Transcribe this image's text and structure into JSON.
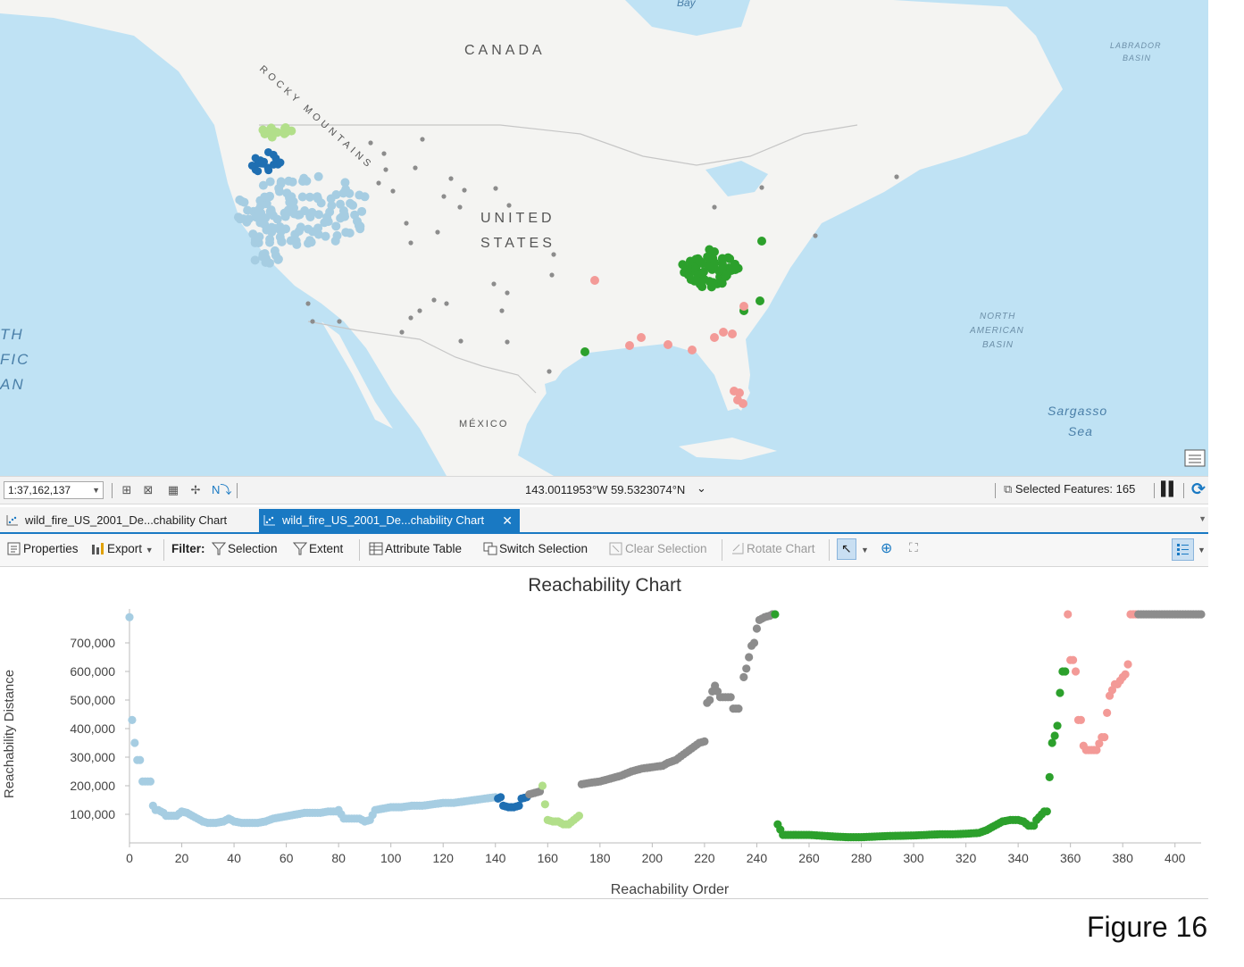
{
  "map": {
    "labels": {
      "canada": "CANADA",
      "united": "UNITED",
      "states": "STATES",
      "mexico": "MÉXICO",
      "rocky": "ROCKY MOUNTAINS",
      "bay": "Bay",
      "labrador_1": "LABRADOR",
      "labrador_2": "BASIN",
      "nab_1": "NORTH",
      "nab_2": "AMERICAN",
      "nab_3": "BASIN",
      "sargasso_1": "Sargasso",
      "sargasso_2": "Sea",
      "pacific_1": "TH",
      "pacific_2": "FIC",
      "pacific_3": "AN"
    },
    "colors": {
      "ocean": "#bfe2f4",
      "land": "#f4f4f2",
      "cluster_light_blue": "#a6cde2",
      "cluster_dark_blue": "#1f6fb2",
      "cluster_light_green": "#b2df8a",
      "cluster_green": "#2ca02c",
      "cluster_pink": "#f39a97",
      "noise_gray": "#8c8c8c"
    }
  },
  "statusbar": {
    "scale": "1:37,162,137",
    "coordinates": "143.0011953°W 59.5323074°N",
    "selected_features": "Selected Features: 165"
  },
  "tabs": [
    {
      "label": "wild_fire_US_2001_De...chability Chart",
      "active": false
    },
    {
      "label": "wild_fire_US_2001_De...chability Chart",
      "active": true
    }
  ],
  "toolbar": {
    "properties": "Properties",
    "export": "Export",
    "filter": "Filter:",
    "selection": "Selection",
    "extent": "Extent",
    "attribute_table": "Attribute Table",
    "switch_selection": "Switch Selection",
    "clear_selection": "Clear Selection",
    "rotate_chart": "Rotate Chart"
  },
  "chart_data": {
    "type": "scatter",
    "title": "Reachability Chart",
    "xlabel": "Reachability Order",
    "ylabel": "Reachability Distance",
    "xlim": [
      0,
      410
    ],
    "ylim": [
      0,
      800000
    ],
    "xticks": [
      0,
      20,
      40,
      60,
      80,
      100,
      120,
      140,
      160,
      180,
      200,
      220,
      240,
      260,
      280,
      300,
      320,
      340,
      360,
      380,
      400
    ],
    "yticks": [
      "100,000",
      "200,000",
      "300,000",
      "400,000",
      "500,000",
      "600,000",
      "700,000"
    ],
    "ytick_values": [
      100000,
      200000,
      300000,
      400000,
      500000,
      600000,
      700000
    ],
    "grid": false,
    "series": [
      {
        "color": "#a6cde2",
        "points": [
          [
            0,
            790000
          ],
          [
            1,
            430000
          ],
          [
            2,
            350000
          ],
          [
            3,
            290000
          ],
          [
            4,
            290000
          ],
          [
            5,
            215000
          ],
          [
            6,
            215000
          ],
          [
            7,
            215000
          ],
          [
            8,
            215000
          ],
          [
            9,
            130000
          ],
          [
            10,
            115000
          ],
          [
            11,
            115000
          ],
          [
            12,
            110000
          ],
          [
            13,
            105000
          ],
          [
            14,
            95000
          ],
          [
            16,
            95000
          ],
          [
            18,
            95000
          ],
          [
            20,
            110000
          ],
          [
            22,
            105000
          ],
          [
            24,
            95000
          ],
          [
            26,
            85000
          ],
          [
            28,
            75000
          ],
          [
            30,
            70000
          ],
          [
            33,
            70000
          ],
          [
            36,
            75000
          ],
          [
            38,
            85000
          ],
          [
            40,
            75000
          ],
          [
            43,
            70000
          ],
          [
            46,
            70000
          ],
          [
            49,
            70000
          ],
          [
            52,
            75000
          ],
          [
            55,
            85000
          ],
          [
            58,
            90000
          ],
          [
            61,
            95000
          ],
          [
            64,
            100000
          ],
          [
            67,
            105000
          ],
          [
            70,
            105000
          ],
          [
            73,
            105000
          ],
          [
            76,
            110000
          ],
          [
            79,
            110000
          ],
          [
            80,
            115000
          ],
          [
            82,
            85000
          ],
          [
            85,
            85000
          ],
          [
            88,
            85000
          ],
          [
            90,
            75000
          ],
          [
            92,
            80000
          ],
          [
            94,
            115000
          ],
          [
            97,
            120000
          ],
          [
            100,
            125000
          ],
          [
            104,
            125000
          ],
          [
            108,
            130000
          ],
          [
            112,
            130000
          ],
          [
            116,
            135000
          ],
          [
            120,
            140000
          ],
          [
            124,
            140000
          ],
          [
            128,
            145000
          ],
          [
            132,
            150000
          ],
          [
            136,
            155000
          ],
          [
            140,
            160000
          ]
        ]
      },
      {
        "color": "#1f6fb2",
        "points": [
          [
            141,
            155000
          ],
          [
            142,
            160000
          ],
          [
            143,
            130000
          ],
          [
            145,
            125000
          ],
          [
            147,
            125000
          ],
          [
            149,
            130000
          ],
          [
            150,
            155000
          ],
          [
            152,
            160000
          ]
        ]
      },
      {
        "color": "#8c8c8c",
        "points": [
          [
            153,
            170000
          ],
          [
            155,
            175000
          ],
          [
            157,
            180000
          ],
          [
            173,
            205000
          ],
          [
            176,
            210000
          ],
          [
            180,
            215000
          ],
          [
            184,
            225000
          ],
          [
            188,
            235000
          ],
          [
            192,
            250000
          ],
          [
            196,
            260000
          ],
          [
            200,
            265000
          ],
          [
            204,
            270000
          ],
          [
            206,
            280000
          ],
          [
            209,
            290000
          ],
          [
            212,
            310000
          ],
          [
            215,
            330000
          ],
          [
            218,
            350000
          ],
          [
            220,
            355000
          ],
          [
            221,
            490000
          ],
          [
            222,
            500000
          ],
          [
            223,
            530000
          ],
          [
            224,
            550000
          ],
          [
            226,
            510000
          ],
          [
            228,
            510000
          ],
          [
            230,
            510000
          ],
          [
            231,
            470000
          ],
          [
            233,
            470000
          ],
          [
            235,
            580000
          ],
          [
            236,
            610000
          ],
          [
            237,
            650000
          ],
          [
            238,
            690000
          ],
          [
            239,
            700000
          ],
          [
            240,
            750000
          ],
          [
            241,
            780000
          ],
          [
            243,
            790000
          ],
          [
            245,
            795000
          ],
          [
            246,
            800000
          ]
        ]
      },
      {
        "color": "#b2df8a",
        "points": [
          [
            158,
            200000
          ],
          [
            159,
            135000
          ],
          [
            160,
            80000
          ],
          [
            162,
            75000
          ],
          [
            164,
            75000
          ],
          [
            166,
            65000
          ],
          [
            168,
            65000
          ],
          [
            170,
            80000
          ],
          [
            172,
            95000
          ]
        ]
      },
      {
        "color": "#2ca02c",
        "points": [
          [
            247,
            800000
          ],
          [
            248,
            65000
          ],
          [
            250,
            28000
          ],
          [
            255,
            28000
          ],
          [
            260,
            28000
          ],
          [
            265,
            25000
          ],
          [
            270,
            22000
          ],
          [
            275,
            20000
          ],
          [
            280,
            20000
          ],
          [
            285,
            22000
          ],
          [
            290,
            24000
          ],
          [
            295,
            25000
          ],
          [
            300,
            26000
          ],
          [
            305,
            28000
          ],
          [
            310,
            30000
          ],
          [
            315,
            30000
          ],
          [
            320,
            32000
          ],
          [
            325,
            35000
          ],
          [
            328,
            45000
          ],
          [
            331,
            60000
          ],
          [
            334,
            75000
          ],
          [
            337,
            80000
          ],
          [
            340,
            80000
          ],
          [
            342,
            75000
          ],
          [
            344,
            60000
          ],
          [
            346,
            60000
          ],
          [
            347,
            80000
          ],
          [
            348,
            90000
          ],
          [
            350,
            110000
          ],
          [
            351,
            110000
          ],
          [
            352,
            230000
          ],
          [
            353,
            350000
          ],
          [
            354,
            375000
          ],
          [
            355,
            410000
          ],
          [
            356,
            525000
          ],
          [
            357,
            600000
          ],
          [
            358,
            600000
          ]
        ]
      },
      {
        "color": "#f39a97",
        "points": [
          [
            359,
            800000
          ],
          [
            360,
            640000
          ],
          [
            361,
            640000
          ],
          [
            362,
            600000
          ],
          [
            363,
            430000
          ],
          [
            364,
            430000
          ],
          [
            365,
            340000
          ],
          [
            366,
            325000
          ],
          [
            368,
            325000
          ],
          [
            370,
            325000
          ],
          [
            372,
            370000
          ],
          [
            373,
            370000
          ],
          [
            374,
            455000
          ],
          [
            375,
            515000
          ],
          [
            376,
            535000
          ],
          [
            377,
            555000
          ],
          [
            378,
            555000
          ],
          [
            380,
            580000
          ],
          [
            381,
            590000
          ],
          [
            382,
            625000
          ],
          [
            383,
            800000
          ],
          [
            384,
            800000
          ],
          [
            385,
            800000
          ]
        ]
      },
      {
        "color": "#8c8c8c",
        "points": [
          [
            386,
            800000
          ],
          [
            390,
            800000
          ],
          [
            395,
            800000
          ],
          [
            400,
            800000
          ],
          [
            405,
            800000
          ],
          [
            410,
            800000
          ]
        ]
      }
    ]
  },
  "caption": "Figure 16"
}
